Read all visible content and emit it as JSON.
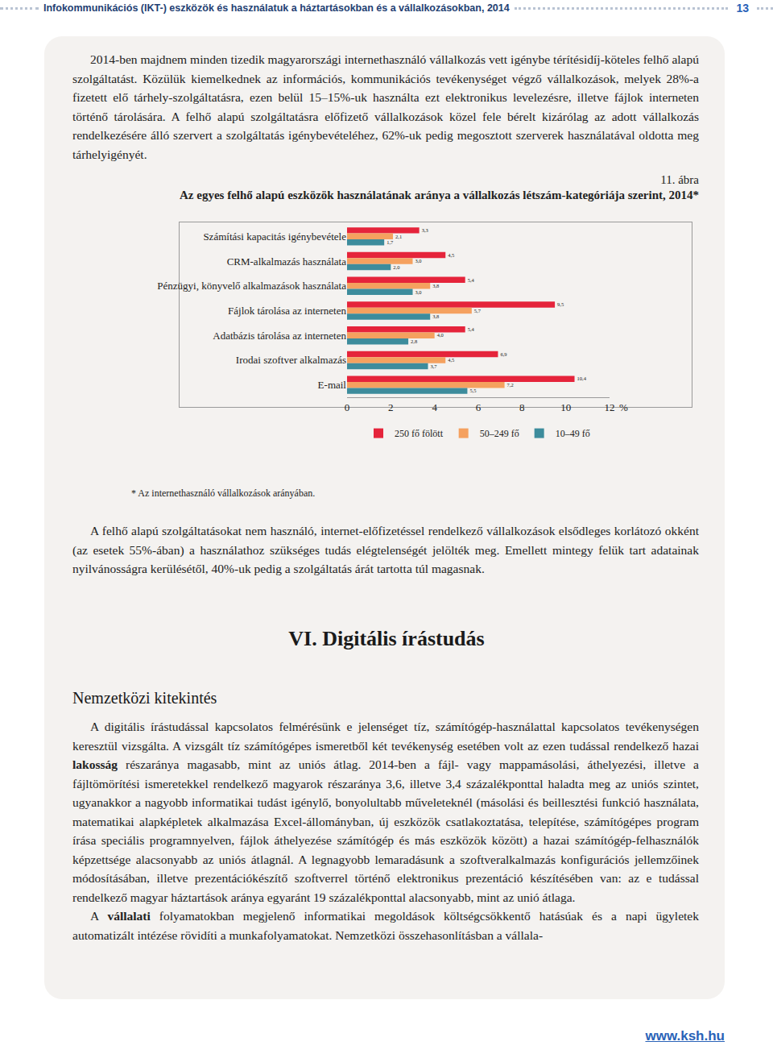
{
  "header": {
    "title": "Infokommunikációs (IKT-) eszközök és használatuk a háztartásokban és a vállalkozásokban, 2014",
    "page": "13"
  },
  "paragraphs_top": [
    [
      "2014-ben majdnem minden tizedik magyarországi internethasználó vállalkozás vett igénybe térítésidíj-köteles felhő alapú szolgáltatást. Közülük kiemelkednek az információs, kommunikációs tevékenységet végző vállalkozások, melyek 28%-a fizetett elő tárhely-szolgáltatásra, ezen belül 15–15%-uk használta ezt elektronikus levelezésre, illetve fájlok interneten történő tárolására. A felhő alapú szolgáltatásra előfizető vállalkozások közel fele bérelt kizárólag az adott vállalkozás rendelkezésére álló szervert a szolgáltatás igénybevételéhez, 62%-uk pedig megosztott szerverek használatával oldotta meg tárhelyigényét."
    ]
  ],
  "figure": {
    "number": "11. ábra",
    "title": "Az egyes felhő alapú eszközök használatának aránya a vállalkozás létszám-kategóriája szerint, 2014*",
    "footnote": "* Az internethasználó vállalkozások arányában."
  },
  "chart_data": {
    "type": "bar",
    "orientation": "horizontal",
    "categories": [
      "Számítási kapacitás igénybevétele",
      "CRM-alkalmazás használata",
      "Pénzügyi, könyvelő alkalmazások használata",
      "Fájlok tárolása az interneten",
      "Adatbázis tárolása az interneten",
      "Irodai szoftver alkalmazás",
      "E-mail"
    ],
    "series": [
      {
        "name": "250 fő fölött",
        "color": "#e5243b",
        "values": [
          3.3,
          4.5,
          5.4,
          9.5,
          5.4,
          6.9,
          10.4
        ],
        "value_labels": [
          "3,3",
          "4,5",
          "5,4",
          "9,5",
          "5,4",
          "6,9",
          "10,4"
        ]
      },
      {
        "name": "50–249 fő",
        "color": "#f5a15f",
        "values": [
          2.1,
          3.0,
          3.8,
          5.7,
          4.0,
          4.5,
          7.2
        ],
        "value_labels": [
          "2,1",
          "3,0",
          "3,8",
          "5,7",
          "4,0",
          "4,5",
          "7,2"
        ]
      },
      {
        "name": "10–49 fő",
        "color": "#3d8c9c",
        "values": [
          1.7,
          2.0,
          3.0,
          3.8,
          2.8,
          3.7,
          5.5
        ],
        "value_labels": [
          "1,7",
          "2,0",
          "3,0",
          "3,8",
          "2,8",
          "3,7",
          "5,5"
        ]
      }
    ],
    "x_label": "%",
    "xlim": [
      0,
      12
    ],
    "xticks": [
      0,
      2,
      4,
      6,
      8,
      10,
      12
    ],
    "grid": false,
    "legend": "bottom",
    "data_labels": true
  },
  "paragraphs_after": [
    [
      "A felhő alapú szolgáltatásokat nem használó, internet-előfizetéssel rendelkező vállalkozások elsődleges korlátozó okként (az esetek 55%-ában) a használathoz szükséges tudás elégtelenségét jelölték meg. Emellett mintegy felük tart adatainak nyilvánosságra kerülésétől, 40%-uk pedig a szolgáltatás árát tartotta túl magasnak."
    ]
  ],
  "section": {
    "title": "VI. Digitális írástudás",
    "subtitle": "Nemzetközi kitekintés",
    "paragraphs": [
      [
        "A digitális írástudással kapcsolatos felmérésünk e jelenséget tíz, számítógép-használattal kapcsolatos tevékenységen keresztül vizsgálta. A vizsgált tíz számítógépes ismeretből két tevékenység esetében volt az ezen tudással rendelkező hazai ",
        {
          "bold": "lakosság"
        },
        " részaránya magasabb, mint az uniós átlag. 2014-ben a fájl- vagy mappamásolási, áthelyezési, illetve a fájltömörítési ismeretekkel rendelkező magyarok részaránya 3,6, illetve 3,4 százalékponttal haladta meg az uniós szintet, ugyanakkor a nagyobb informatikai tudást igénylő, bonyolultabb műveleteknél (másolási és beillesztési funkció használata, matematikai alapképletek alkalmazása Excel-állományban, új eszközök csatlakoztatása, telepítése, számítógépes program írása speciális programnyelven, fájlok áthelyezése számítógép és más eszközök között) a hazai számítógép-felhasználók képzettsége alacsonyabb az uniós átlagnál. A legnagyobb lemaradásunk a szoftveralkalmazás konfigurációs jellemzőinek módosításában, illetve prezentációkészítő szoftverrel történő elektronikus prezentáció készítésében van: az e tudással rendelkező magyar háztartások aránya egyaránt 19 százalékponttal alacsonyabb, mint az unió átlaga."
      ],
      [
        "A ",
        {
          "bold": "vállalati"
        },
        " folyamatokban megjelenő informatikai megoldások költségcsökkentő hatásúak és a napi ügyletek automatizált intézése rövidíti a munkafolyamatokat. Nemzetközi összehasonlításban a vállala-"
      ]
    ]
  },
  "footer": "www.ksh.hu"
}
